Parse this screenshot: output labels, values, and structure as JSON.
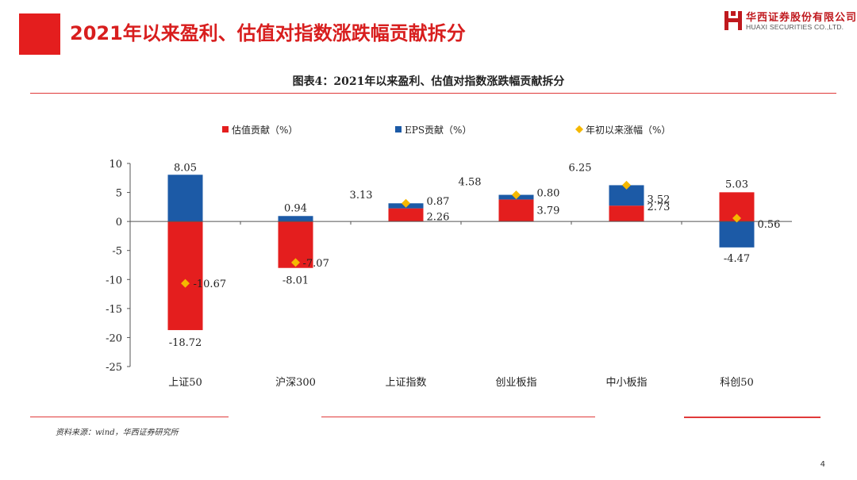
{
  "slide": {
    "title": "2021年以来盈利、估值对指数涨跌幅贡献拆分",
    "page_number": "4",
    "accent_color": "#e41e1e"
  },
  "logo": {
    "name_cn": "华西证券股份有限公司",
    "name_en": "HUAXI SECURITIES CO.,LTD."
  },
  "figure": {
    "caption": "图表4：2021年以来盈利、估值对指数涨跌幅贡献拆分",
    "source": "资料来源：wind，华西证券研究所"
  },
  "chart_data": {
    "type": "bar",
    "stacked": true,
    "categories": [
      "上证50",
      "沪深300",
      "上证指数",
      "创业板指",
      "中小板指",
      "科创50"
    ],
    "series": [
      {
        "name": "估值贡献（%）",
        "kind": "bar",
        "color": "#e41e1e",
        "values": [
          -18.72,
          -8.01,
          2.26,
          3.79,
          2.73,
          5.03
        ]
      },
      {
        "name": "EPS贡献（%）",
        "kind": "bar",
        "color": "#1c5aa6",
        "values": [
          8.05,
          0.94,
          0.87,
          0.8,
          3.52,
          -4.47
        ]
      },
      {
        "name": "年初以来涨幅（%）",
        "kind": "scatter",
        "marker": "diamond",
        "color": "#f5b800",
        "values": [
          -10.67,
          -7.07,
          3.13,
          4.58,
          6.25,
          0.56
        ]
      }
    ],
    "data_labels": [
      {
        "valuation": "-18.72",
        "eps": "8.05",
        "total": "-10.67"
      },
      {
        "valuation": "-8.01",
        "eps": "0.94",
        "total": "-7.07"
      },
      {
        "valuation": "2.26",
        "eps": "0.87",
        "total": "3.13"
      },
      {
        "valuation": "3.79",
        "eps": "0.80",
        "total": "4.58"
      },
      {
        "valuation": "2.73",
        "eps": "3.52",
        "total": "6.25"
      },
      {
        "valuation": "5.03",
        "eps": "-4.47",
        "total": "0.56"
      }
    ],
    "ylim": [
      -25,
      10
    ],
    "yticks": [
      "10",
      "5",
      "0",
      "-5",
      "-10",
      "-15",
      "-20",
      "-25"
    ],
    "legend_position": "top",
    "grid": false
  }
}
